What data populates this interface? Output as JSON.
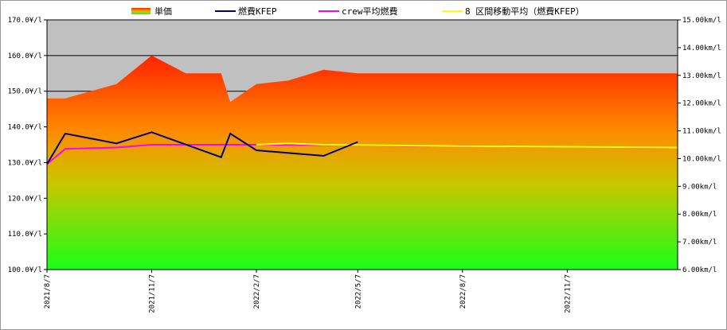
{
  "chart_data": {
    "type": "area+line",
    "legend": [
      {
        "label": "単価",
        "kind": "area",
        "color": "#ff4500"
      },
      {
        "label": "燃費KFEP",
        "kind": "line",
        "color": "#000080"
      },
      {
        "label": "crew平均燃費",
        "kind": "line",
        "color": "#ff00ff"
      },
      {
        "label": "8 区間移動平均（燃費KFEP）",
        "kind": "line",
        "color": "#ffff00"
      }
    ],
    "x_dates": [
      "2021/8/7",
      "2021/11/7",
      "2022/2/7",
      "2022/5/7",
      "2022/8/7",
      "2022/11/7"
    ],
    "y_left": {
      "ylim": [
        100,
        170
      ],
      "ticks": [
        "100.0¥/l",
        "110.0¥/l",
        "120.0¥/l",
        "130.0¥/l",
        "140.0¥/l",
        "150.0¥/l",
        "160.0¥/l",
        "170.0¥/l"
      ]
    },
    "y_right": {
      "ylim": [
        6,
        15
      ],
      "ticks": [
        "6.00km/l",
        "7.00km/l",
        "8.00km/l",
        "9.00km/l",
        "10.00km/l",
        "11.00km/l",
        "12.00km/l",
        "13.00km/l",
        "14.00km/l",
        "15.00km/l"
      ]
    },
    "x_range": [
      "2021/8/7",
      "2023/2/12"
    ],
    "gridlines_left": [
      150,
      160
    ],
    "series": [
      {
        "name": "単価",
        "axis": "left",
        "points": [
          [
            "2021/8/7",
            148
          ],
          [
            "2021/8/23",
            148
          ],
          [
            "2021/10/7",
            152
          ],
          [
            "2021/11/7",
            160
          ],
          [
            "2021/12/7",
            155
          ],
          [
            "2022/1/7",
            155
          ],
          [
            "2022/1/15",
            147
          ],
          [
            "2022/2/7",
            152
          ],
          [
            "2022/3/7",
            153
          ],
          [
            "2022/4/7",
            156
          ],
          [
            "2022/5/7",
            155
          ],
          [
            "2023/2/12",
            155
          ]
        ]
      },
      {
        "name": "燃費KFEP",
        "axis": "right",
        "points": [
          [
            "2021/8/7",
            9.8
          ],
          [
            "2021/8/23",
            10.9
          ],
          [
            "2021/10/7",
            10.55
          ],
          [
            "2021/11/7",
            10.95
          ],
          [
            "2022/1/7",
            10.05
          ],
          [
            "2022/1/15",
            10.9
          ],
          [
            "2022/2/7",
            10.3
          ],
          [
            "2022/4/7",
            10.1
          ],
          [
            "2022/5/7",
            10.6
          ]
        ]
      },
      {
        "name": "crew平均燃費",
        "axis": "right",
        "points": [
          [
            "2021/8/7",
            9.8
          ],
          [
            "2021/8/23",
            10.35
          ],
          [
            "2021/10/7",
            10.4
          ],
          [
            "2021/11/7",
            10.5
          ],
          [
            "2022/2/7",
            10.5
          ],
          [
            "2023/2/12",
            10.4
          ]
        ]
      },
      {
        "name": "8 区間移動平均（燃費KFEP）",
        "axis": "right",
        "points": [
          [
            "2022/2/7",
            10.5
          ],
          [
            "2022/3/7",
            10.55
          ],
          [
            "2022/4/7",
            10.5
          ],
          [
            "2022/8/7",
            10.45
          ],
          [
            "2023/2/12",
            10.4
          ]
        ]
      }
    ]
  }
}
